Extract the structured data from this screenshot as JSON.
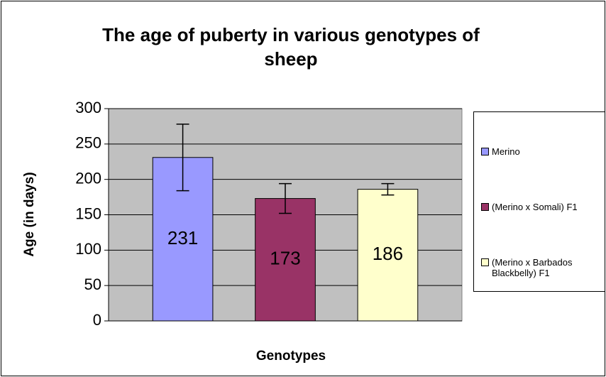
{
  "chart_data": {
    "type": "bar",
    "title": "The age of puberty in various genotypes of sheep",
    "xlabel": "Genotypes",
    "ylabel": "Age (in days)",
    "categories": [
      null
    ],
    "series": [
      {
        "name": "Merino",
        "color": "#9999ff",
        "values": [
          231
        ],
        "errors": [
          47
        ]
      },
      {
        "name": "(Merino x Somali) F1",
        "color": "#993366",
        "values": [
          173
        ],
        "errors": [
          21
        ]
      },
      {
        "name": "(Merino x Barbados Blackbelly) F1",
        "color": "#ffffcc",
        "values": [
          186
        ],
        "errors": [
          8
        ]
      }
    ],
    "ylim": [
      0,
      300
    ],
    "yticks": [
      0,
      50,
      100,
      150,
      200,
      250,
      300
    ],
    "grid": true,
    "legend": "right",
    "plot_background": "#c0c0c0"
  }
}
